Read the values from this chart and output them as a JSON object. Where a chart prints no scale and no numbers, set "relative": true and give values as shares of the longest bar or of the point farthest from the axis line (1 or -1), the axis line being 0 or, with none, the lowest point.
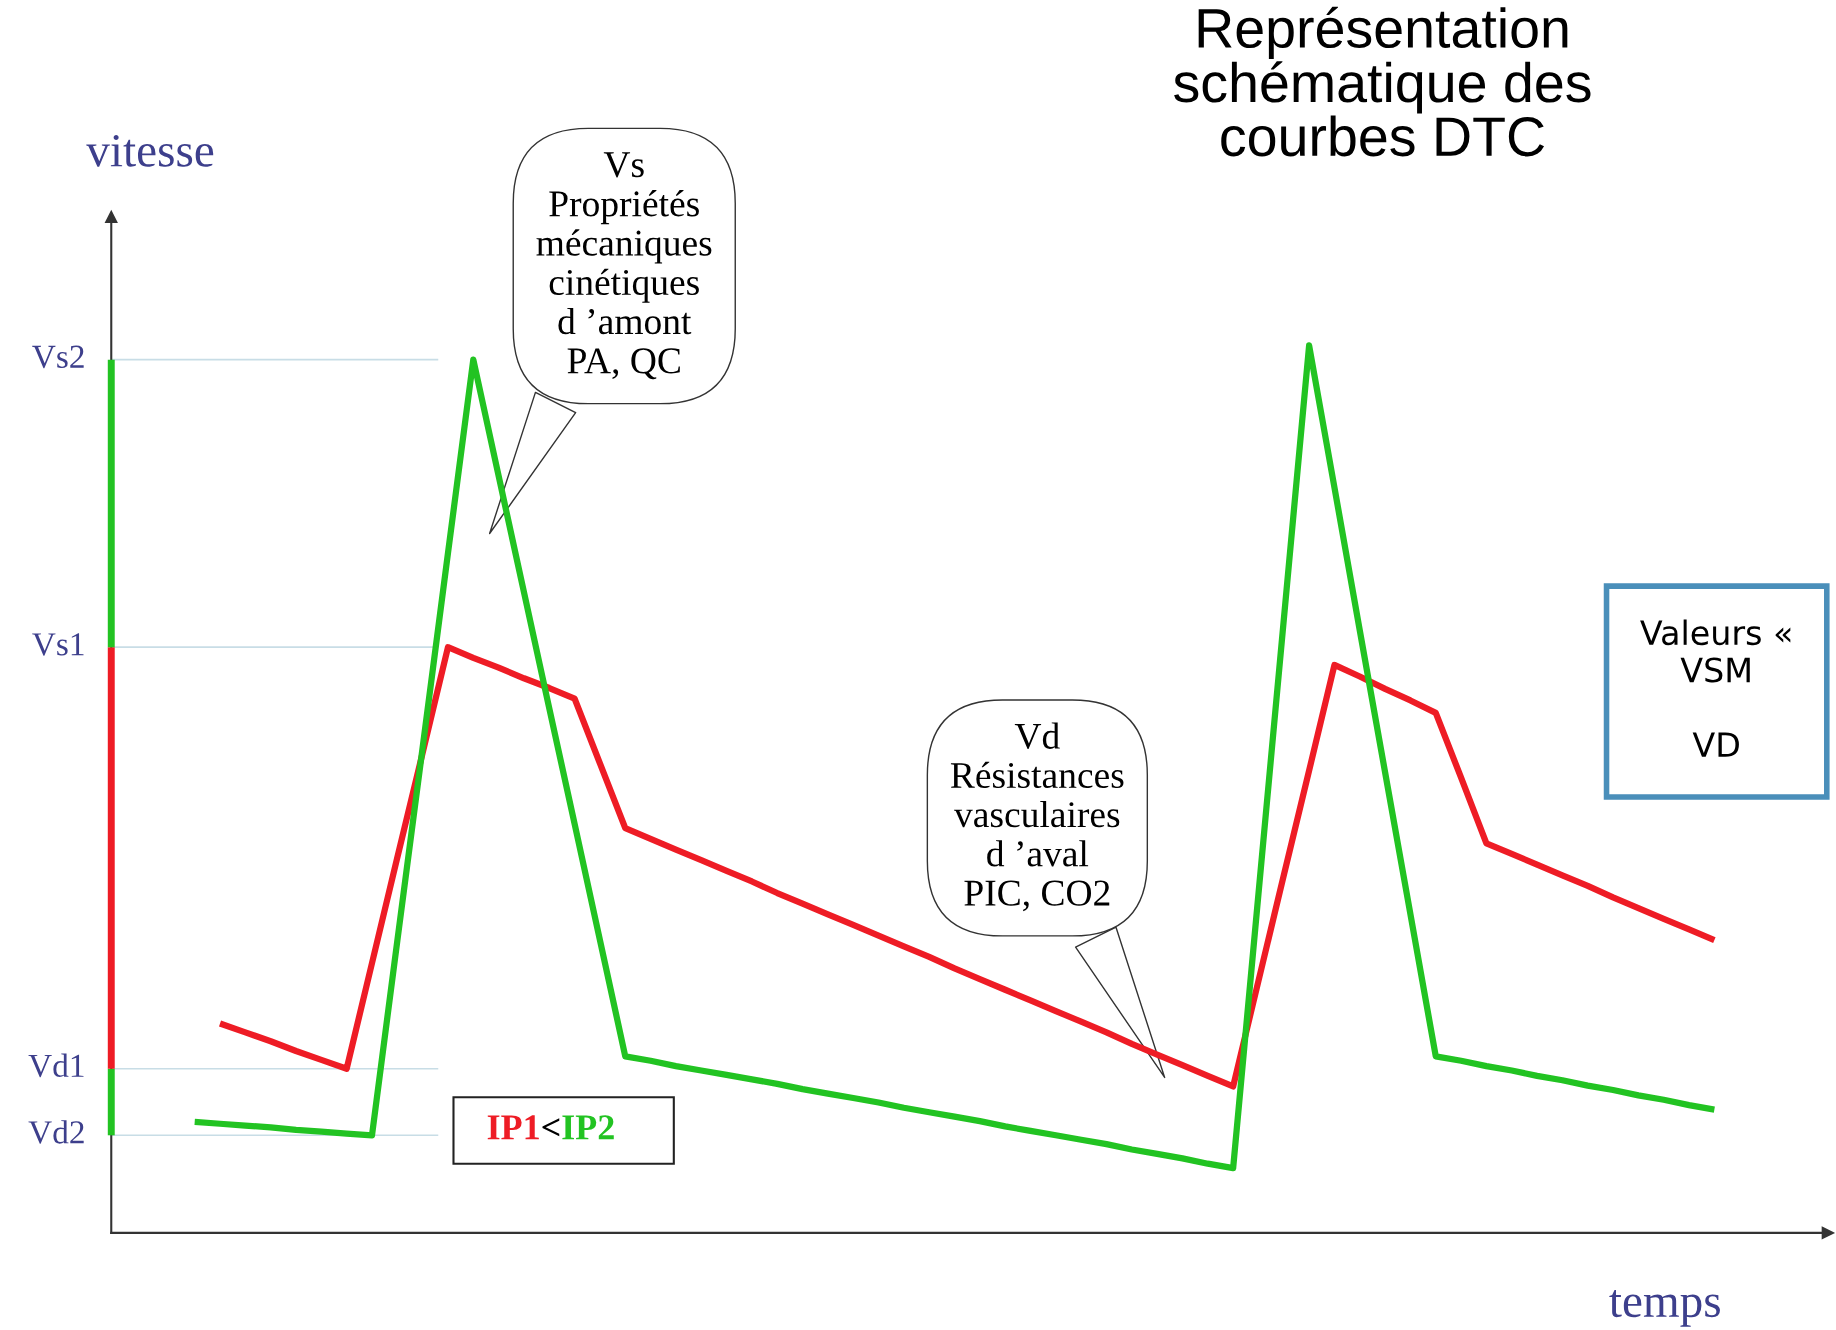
{
  "chart_data": {
    "type": "line",
    "title": "Représentation\nschématique des\ncourbes DTC",
    "xlabel": "temps",
    "ylabel": "vitesse",
    "categories": [
      null,
      null,
      null,
      null,
      null,
      null,
      null,
      null,
      null,
      null,
      null,
      null,
      null,
      null,
      null,
      null,
      null,
      null,
      null,
      null,
      null,
      null,
      null,
      null,
      null,
      null,
      null,
      null,
      null,
      null,
      null,
      null,
      null,
      null,
      null,
      null,
      null,
      null,
      null,
      null,
      null,
      null,
      null,
      null,
      null,
      null,
      null,
      null,
      null,
      null,
      null,
      null,
      null,
      null,
      null,
      null,
      null,
      null,
      null,
      null,
      null
    ],
    "relative": true,
    "series": [
      {
        "name": "IP1",
        "color": "#ee1c25",
        "values": [
          null,
          0.236,
          0.226,
          0.216,
          0.205,
          0.195,
          0.185,
          0.304,
          0.423,
          0.541,
          0.66,
          0.648,
          0.637,
          0.625,
          0.614,
          0.602,
          0.529,
          0.456,
          0.444,
          0.432,
          0.42,
          0.408,
          0.396,
          0.383,
          0.371,
          0.359,
          0.347,
          0.335,
          0.323,
          0.311,
          0.298,
          0.286,
          0.274,
          0.262,
          0.25,
          0.238,
          0.226,
          0.213,
          0.201,
          0.189,
          0.177,
          0.165,
          0.284,
          0.403,
          0.521,
          0.64,
          0.627,
          0.613,
          0.6,
          0.586,
          0.513,
          0.439,
          0.427,
          0.415,
          0.403,
          0.391,
          0.378,
          0.366,
          0.354,
          0.342,
          0.33
        ]
      },
      {
        "name": "IP2",
        "color": "#22c322",
        "values": [
          0.125,
          0.123,
          0.121,
          0.119,
          0.116,
          0.114,
          0.112,
          0.11,
          0.329,
          0.547,
          0.766,
          0.984,
          0.853,
          0.722,
          0.591,
          0.461,
          0.33,
          0.199,
          0.194,
          0.188,
          0.183,
          0.178,
          0.173,
          0.168,
          0.162,
          0.157,
          0.152,
          0.147,
          0.141,
          0.136,
          0.131,
          0.126,
          0.12,
          0.115,
          0.11,
          0.105,
          0.1,
          0.094,
          0.089,
          0.084,
          0.078,
          0.073,
          0.382,
          0.691,
          1.0,
          0.84,
          0.679,
          0.519,
          0.359,
          0.199,
          0.194,
          0.188,
          0.183,
          0.177,
          0.172,
          0.166,
          0.161,
          0.155,
          0.15,
          0.144,
          0.139
        ]
      }
    ],
    "ref_lines": [
      {
        "axis": "y",
        "value": 0.984,
        "label": "Vs2",
        "color": "#c8dde6"
      },
      {
        "axis": "y",
        "value": 0.66,
        "label": "Vs1",
        "color": "#c8dde6"
      },
      {
        "axis": "y",
        "value": 0.185,
        "label": "Vd1",
        "color": "#c8dde6"
      },
      {
        "axis": "y",
        "value": 0.11,
        "label": "Vd2",
        "color": "#c8dde6"
      }
    ],
    "annotations": [
      "Vs\nPropriétés\nmécaniques\ncinétiques\nd ’amont\nPA, QC",
      "Vd\nRésistances\nvasculaires\nd ’aval\nPIC, CO2",
      "<",
      "Valeurs «\nVSM\n\nVD"
    ],
    "grid": false,
    "marker": "none",
    "line_style": "solid"
  }
}
